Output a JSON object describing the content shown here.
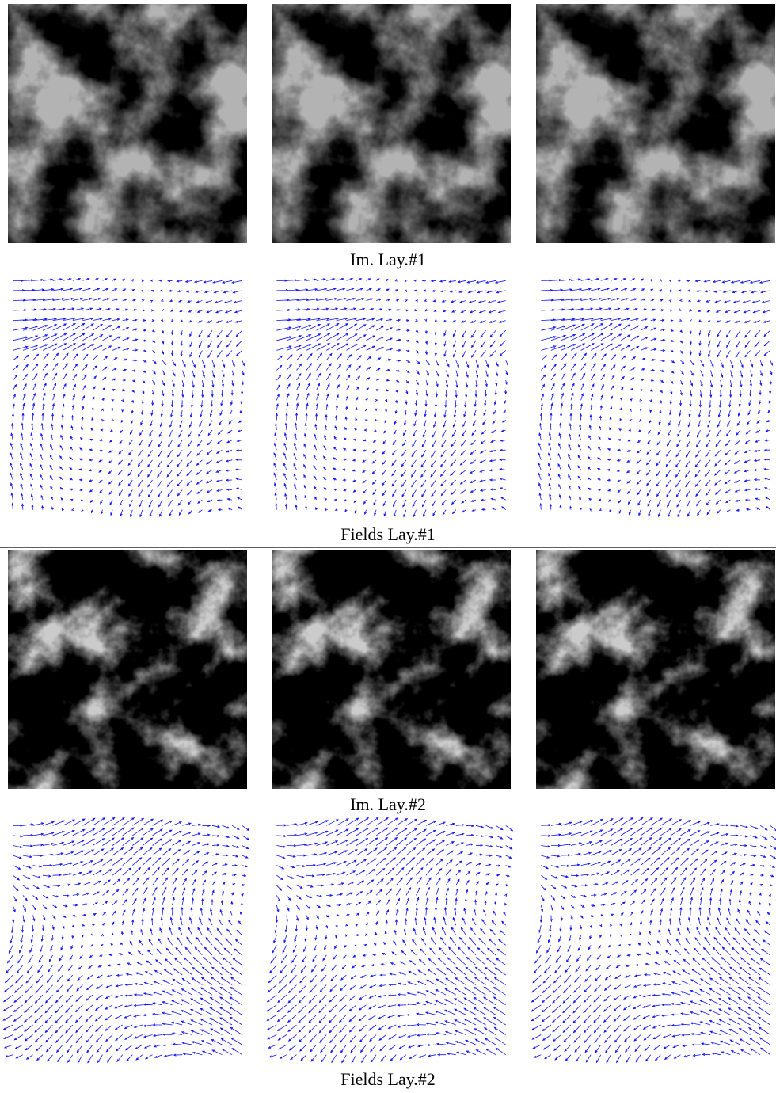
{
  "sections": [
    {
      "image_caption": "Im. Lay.#1",
      "fields_caption": "Fields Lay.#1"
    },
    {
      "image_caption": "Im. Lay.#2",
      "fields_caption": "Fields Lay.#2"
    }
  ]
}
